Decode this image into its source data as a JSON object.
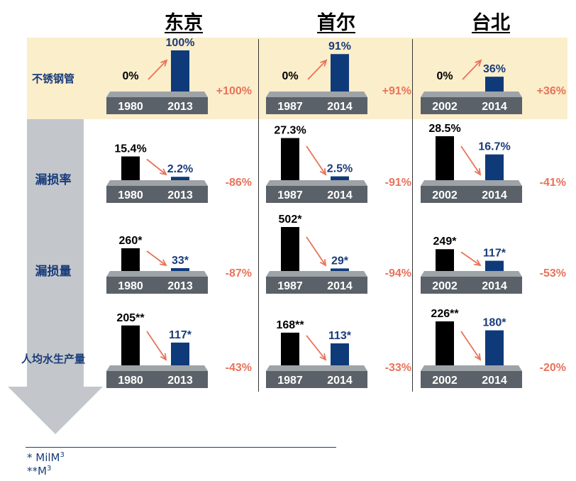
{
  "cities": [
    "东京",
    "首尔",
    "台北"
  ],
  "metrics": [
    "不锈钢管",
    "漏损率",
    "漏损量",
    "人均水生产量"
  ],
  "footnotes": {
    "star1": "*  MilM",
    "star1_sup": "3",
    "star2": "**M",
    "star2_sup": "3"
  },
  "colors": {
    "before": "#000000",
    "after": "#0f3a7a",
    "platform": "#5b6168",
    "platform_top": "#9ea3a8",
    "change": "#e8735a",
    "value_before": "#000000",
    "value_after": "#1a3c7a",
    "band": "#fbeecb",
    "arrow": "#c3c7cb"
  },
  "chart_data": {
    "type": "bar",
    "title": "",
    "groups": [
      {
        "row": "不锈钢管",
        "col": "东京",
        "years": [
          "1980",
          "2013"
        ],
        "values": [
          0,
          100
        ],
        "labels": [
          "0%",
          "100%"
        ],
        "change": "+100%"
      },
      {
        "row": "不锈钢管",
        "col": "首尔",
        "years": [
          "1987",
          "2014"
        ],
        "values": [
          0,
          91
        ],
        "labels": [
          "0%",
          "91%"
        ],
        "change": "+91%"
      },
      {
        "row": "不锈钢管",
        "col": "台北",
        "years": [
          "2002",
          "2014"
        ],
        "values": [
          0,
          36
        ],
        "labels": [
          "0%",
          "36%"
        ],
        "change": "+36%"
      },
      {
        "row": "漏损率",
        "col": "东京",
        "years": [
          "1980",
          "2013"
        ],
        "values": [
          15.4,
          2.2
        ],
        "labels": [
          "15.4%",
          "2.2%"
        ],
        "change": "-86%"
      },
      {
        "row": "漏损率",
        "col": "首尔",
        "years": [
          "1987",
          "2014"
        ],
        "values": [
          27.3,
          2.5
        ],
        "labels": [
          "27.3%",
          "2.5%"
        ],
        "change": "-91%"
      },
      {
        "row": "漏损率",
        "col": "台北",
        "years": [
          "2002",
          "2014"
        ],
        "values": [
          28.5,
          16.7
        ],
        "labels": [
          "28.5%",
          "16.7%"
        ],
        "change": "-41%"
      },
      {
        "row": "漏损量",
        "col": "东京",
        "years": [
          "1980",
          "2013"
        ],
        "values": [
          260,
          33
        ],
        "labels": [
          "260*",
          "33*"
        ],
        "change": "-87%"
      },
      {
        "row": "漏损量",
        "col": "首尔",
        "years": [
          "1987",
          "2014"
        ],
        "values": [
          502,
          29
        ],
        "labels": [
          "502*",
          "29*"
        ],
        "change": "-94%"
      },
      {
        "row": "漏损量",
        "col": "台北",
        "years": [
          "2002",
          "2014"
        ],
        "values": [
          249,
          117
        ],
        "labels": [
          "249*",
          "117*"
        ],
        "change": "-53%"
      },
      {
        "row": "人均水生产量",
        "col": "东京",
        "years": [
          "1980",
          "2013"
        ],
        "values": [
          205,
          117
        ],
        "labels": [
          "205**",
          "117*"
        ],
        "change": "-43%"
      },
      {
        "row": "人均水生产量",
        "col": "首尔",
        "years": [
          "1987",
          "2014"
        ],
        "values": [
          168,
          113
        ],
        "labels": [
          "168**",
          "113*"
        ],
        "change": "-33%"
      },
      {
        "row": "人均水生产量",
        "col": "台北",
        "years": [
          "2002",
          "2014"
        ],
        "values": [
          226,
          180
        ],
        "labels": [
          "226**",
          "180*"
        ],
        "change": "-20%"
      }
    ]
  }
}
